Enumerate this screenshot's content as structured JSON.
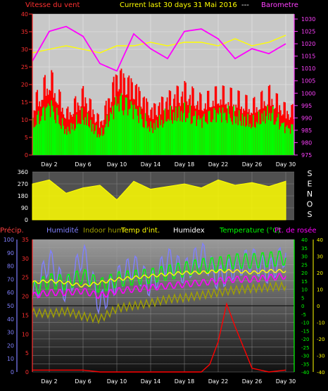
{
  "chart_data": [
    {
      "type": "line",
      "title": "Current last 30 days 31 Mai 2016",
      "title_extra": "---",
      "left_label": "Vitesse du vent",
      "right_label": "Barometre",
      "yleft_ticks": [
        "0",
        "5",
        "10",
        "15",
        "20",
        "25",
        "30",
        "35",
        "40"
      ],
      "yright_ticks": [
        "975",
        "980",
        "985",
        "990",
        "995",
        "1000",
        "1005",
        "1010",
        "1015",
        "1020",
        "1025",
        "1030"
      ],
      "ylim_left": [
        0,
        40
      ],
      "ylim_right": [
        975,
        1032
      ],
      "x_ticks": [
        "Day 2",
        "Day 6",
        "Day 10",
        "Day 14",
        "Day 18",
        "Day 22",
        "Day 26",
        "Day 30"
      ],
      "background": "#c8c8c8",
      "grid": true,
      "series": [
        {
          "color": "#ff00ff",
          "x": [
            0,
            2,
            4,
            6,
            8,
            10,
            12,
            14,
            16,
            18,
            20,
            22,
            24,
            26,
            28,
            30
          ],
          "y": [
            1013,
            1025,
            1027,
            1023,
            1012,
            1009,
            1024,
            1018,
            1014,
            1025,
            1026,
            1022,
            1014,
            1018,
            1016,
            1020
          ]
        },
        {
          "color": "#ffff00",
          "x": [
            0,
            2,
            4,
            6,
            8,
            10,
            12,
            14,
            16,
            18,
            20,
            22,
            24,
            26,
            28,
            30
          ],
          "y": [
            29,
            30,
            31,
            30,
            29,
            31,
            31,
            32,
            31,
            32,
            32,
            31,
            33,
            31,
            32,
            34
          ]
        },
        {
          "color": "#ff0000",
          "x": [
            0,
            2,
            4,
            6,
            8,
            10,
            12,
            14,
            16,
            18,
            20,
            22,
            24,
            26,
            28,
            30
          ],
          "y": [
            12,
            19,
            10,
            15,
            8,
            20,
            17,
            11,
            14,
            16,
            13,
            15,
            14,
            12,
            15,
            11
          ]
        },
        {
          "color": "#00ff00",
          "x": [
            0,
            2,
            4,
            6,
            8,
            10,
            12,
            14,
            16,
            18,
            20,
            22,
            24,
            26,
            28,
            30
          ],
          "y": [
            8,
            13,
            6,
            10,
            5,
            14,
            12,
            7,
            10,
            11,
            9,
            11,
            10,
            8,
            11,
            7
          ]
        }
      ]
    },
    {
      "type": "area",
      "y_ticks": [
        "0",
        "90",
        "180",
        "270",
        "360"
      ],
      "ylim": [
        0,
        360
      ],
      "right_letters": [
        "S",
        "E",
        "N",
        "O",
        "S"
      ],
      "background": "#505050",
      "grid": true,
      "series": [
        {
          "color": "#ffff00",
          "x": [
            0,
            2,
            4,
            6,
            8,
            10,
            12,
            14,
            16,
            18,
            20,
            22,
            24,
            26,
            28,
            30
          ],
          "y": [
            270,
            300,
            200,
            240,
            260,
            150,
            290,
            230,
            250,
            270,
            240,
            300,
            260,
            280,
            250,
            290
          ]
        }
      ]
    },
    {
      "type": "line",
      "legend": [
        "Précip.",
        "Humidité",
        "Indoor hum",
        "Temp d'int.",
        "Humidex",
        "Temperature (°C)",
        "Pt. de rosée"
      ],
      "legend_colors": [
        "#ff4040",
        "#8080ff",
        "#a0a000",
        "#ffff00",
        "#ffffff",
        "#00ff00",
        "#ff00ff"
      ],
      "y_far_left_ticks": [
        "0",
        "10",
        "20",
        "30",
        "40",
        "50",
        "60",
        "70",
        "80",
        "90",
        "100"
      ],
      "y_left_ticks": [
        "0",
        "5",
        "10",
        "15",
        "20",
        "25",
        "30",
        "35"
      ],
      "y_right_ticks": [
        "-40",
        "-35",
        "-30",
        "-25",
        "-20",
        "-15",
        "-10",
        "-5",
        "0",
        "5",
        "10",
        "15",
        "20",
        "25",
        "30",
        "35",
        "40"
      ],
      "y_far_right_ticks": [
        "-40",
        "-30",
        "-20",
        "-10",
        "0",
        "10",
        "20",
        "30",
        "40"
      ],
      "ylim_humidity": [
        0,
        100
      ],
      "ylim_temperature": [
        -40,
        40
      ],
      "ylim_precipitation": [
        0,
        35
      ],
      "x_ticks": [
        "Day 2",
        "Day 6",
        "Day 10",
        "Day 14",
        "Day 18",
        "Day 22",
        "Day 26",
        "Day 30"
      ],
      "grid": true,
      "series": [
        {
          "name": "Humidité",
          "color": "#8080ff",
          "x": [
            0,
            2,
            4,
            6,
            8,
            10,
            12,
            14,
            16,
            18,
            20,
            22,
            24,
            26,
            28,
            30
          ],
          "y": [
            55,
            85,
            60,
            90,
            50,
            70,
            80,
            65,
            85,
            75,
            90,
            70,
            80,
            85,
            75,
            90
          ]
        },
        {
          "name": "Indoor hum",
          "color": "#a0a000",
          "x": [
            0,
            2,
            4,
            6,
            8,
            10,
            12,
            14,
            16,
            18,
            20,
            22,
            24,
            26,
            28,
            30
          ],
          "y": [
            45,
            44,
            46,
            42,
            40,
            48,
            50,
            52,
            55,
            56,
            58,
            60,
            62,
            63,
            64,
            65
          ]
        },
        {
          "name": "Temp d'int.",
          "color": "#ffff00",
          "x": [
            0,
            2,
            4,
            6,
            8,
            10,
            12,
            14,
            16,
            18,
            20,
            22,
            24,
            26,
            28,
            30
          ],
          "y": [
            14,
            15,
            14,
            12,
            14,
            16,
            17,
            18,
            19,
            20,
            20,
            21,
            21,
            20,
            21,
            21
          ]
        },
        {
          "name": "Temperature (°C)",
          "color": "#00ff00",
          "x": [
            0,
            2,
            4,
            6,
            8,
            10,
            12,
            14,
            16,
            18,
            20,
            22,
            24,
            26,
            28,
            30
          ],
          "y": [
            10,
            15,
            14,
            18,
            12,
            16,
            17,
            18,
            20,
            22,
            24,
            25,
            27,
            27,
            28,
            29
          ]
        },
        {
          "name": "Pt. de rosée",
          "color": "#ff00ff",
          "x": [
            0,
            2,
            4,
            6,
            8,
            10,
            12,
            14,
            16,
            18,
            20,
            22,
            24,
            26,
            28,
            30
          ],
          "y": [
            6,
            8,
            8,
            9,
            6,
            9,
            10,
            11,
            12,
            13,
            14,
            15,
            16,
            16,
            17,
            18
          ]
        },
        {
          "name": "Précip.",
          "color": "#ff0000",
          "x": [
            0,
            2,
            4,
            6,
            8,
            10,
            12,
            14,
            16,
            18,
            20,
            21,
            22,
            23,
            24,
            26,
            28,
            30
          ],
          "y": [
            0.5,
            0.5,
            0.5,
            0.5,
            0,
            0,
            0,
            0,
            0,
            0,
            0,
            2,
            8,
            18,
            12,
            1,
            0,
            0.5
          ]
        }
      ]
    }
  ]
}
